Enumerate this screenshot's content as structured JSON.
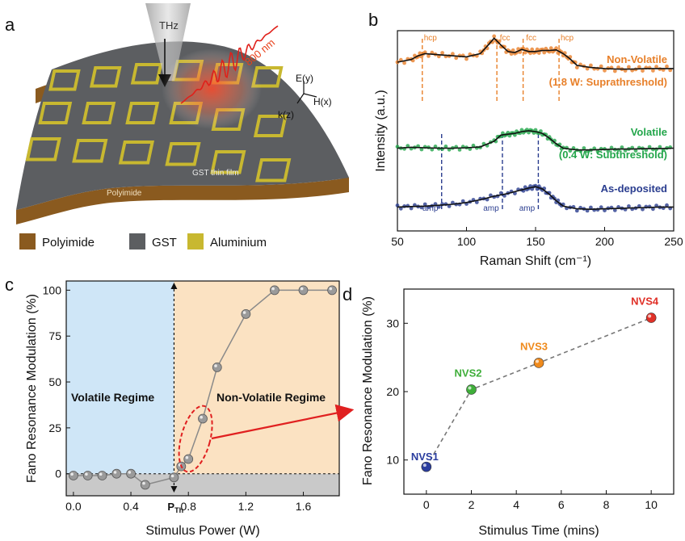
{
  "panel_a": {
    "label": "a",
    "thz_label": "THz",
    "laser_label": "800 nm",
    "axis_e": "E(y)",
    "axis_h": "H(x)",
    "axis_k": "k(z)",
    "film_label": "GST thin film",
    "substrate_label": "Polyimide",
    "legend": [
      {
        "label": "Polyimide",
        "color": "#8a5a1f"
      },
      {
        "label": "GST",
        "color": "#5c5e61"
      },
      {
        "label": "Aluminium",
        "color": "#c8b830"
      }
    ]
  },
  "chart_data": [
    {
      "id": "b",
      "type": "line",
      "panel_label": "b",
      "xlabel": "Raman Shift (cm⁻¹)",
      "ylabel": "Intensity (a.u.)",
      "xlim": [
        50,
        250
      ],
      "xticks": [
        50,
        100,
        150,
        200,
        250
      ],
      "series": [
        {
          "name": "Non-Volatile",
          "note": "(1.8 W: Suprathreshold)",
          "color": "#e8802a",
          "x": [
            50,
            60,
            65,
            70,
            80,
            90,
            100,
            110,
            115,
            120,
            125,
            130,
            135,
            140,
            145,
            150,
            155,
            160,
            165,
            170,
            175,
            180,
            190,
            200,
            210,
            220,
            230,
            240,
            250
          ],
          "y": [
            0.5,
            0.55,
            0.62,
            0.66,
            0.64,
            0.62,
            0.6,
            0.66,
            0.8,
            0.95,
            0.82,
            0.7,
            0.68,
            0.74,
            0.7,
            0.7,
            0.72,
            0.72,
            0.73,
            0.66,
            0.56,
            0.44,
            0.4,
            0.38,
            0.37,
            0.37,
            0.38,
            0.38,
            0.38
          ]
        },
        {
          "name": "Volatile",
          "note": "(0.4 W: Subthreshold)",
          "color": "#23a64b",
          "x": [
            50,
            60,
            70,
            80,
            90,
            100,
            110,
            120,
            125,
            130,
            135,
            140,
            145,
            150,
            155,
            160,
            165,
            170,
            180,
            190,
            200,
            210,
            220,
            230,
            240,
            250
          ],
          "y": [
            0.12,
            0.14,
            0.13,
            0.12,
            0.12,
            0.13,
            0.15,
            0.28,
            0.42,
            0.44,
            0.46,
            0.5,
            0.52,
            0.5,
            0.46,
            0.35,
            0.22,
            0.12,
            0.08,
            0.08,
            0.09,
            0.1,
            0.1,
            0.11,
            0.11,
            0.12
          ]
        },
        {
          "name": "As-deposited",
          "note": "",
          "color": "#2a3d8f",
          "x": [
            50,
            60,
            70,
            80,
            90,
            100,
            110,
            120,
            130,
            140,
            145,
            150,
            155,
            160,
            165,
            170,
            180,
            190,
            200,
            210,
            220,
            230,
            240,
            250
          ],
          "y": [
            0.1,
            0.11,
            0.12,
            0.14,
            0.16,
            0.2,
            0.26,
            0.34,
            0.4,
            0.48,
            0.52,
            0.55,
            0.5,
            0.38,
            0.24,
            0.12,
            0.06,
            0.05,
            0.06,
            0.07,
            0.08,
            0.09,
            0.1,
            0.1
          ]
        }
      ],
      "annotations": [
        {
          "text": "hcp",
          "x": 68,
          "color": "#e8802a"
        },
        {
          "text": "fcc",
          "x": 122,
          "color": "#e8802a"
        },
        {
          "text": "fcc",
          "x": 141,
          "color": "#e8802a"
        },
        {
          "text": "hcp",
          "x": 167,
          "color": "#e8802a"
        },
        {
          "text": "amp",
          "x": 82,
          "color": "#2a3d8f"
        },
        {
          "text": "amp",
          "x": 126,
          "color": "#2a3d8f"
        },
        {
          "text": "amp",
          "x": 152,
          "color": "#2a3d8f"
        }
      ]
    },
    {
      "id": "c",
      "type": "scatter",
      "panel_label": "c",
      "xlabel": "Stimulus Power (W)",
      "ylabel": "Fano Resonance Modulation (%)",
      "xlim": [
        -0.05,
        1.85
      ],
      "ylim": [
        -12,
        105
      ],
      "xticks": [
        0.0,
        0.4,
        0.8,
        1.2,
        1.6
      ],
      "yticks": [
        0,
        25,
        50,
        75,
        100
      ],
      "threshold_x": 0.7,
      "threshold_label": "P",
      "threshold_sub": "Th",
      "regions": [
        {
          "label": "Volatile Regime",
          "color": "#cfe6f7"
        },
        {
          "label": "Non-Volatile Regime",
          "color": "#fbe2c2"
        }
      ],
      "x": [
        0.0,
        0.1,
        0.2,
        0.3,
        0.4,
        0.5,
        0.7,
        0.75,
        0.8,
        0.9,
        1.0,
        1.2,
        1.4,
        1.6,
        1.8
      ],
      "y": [
        -1,
        -1,
        -1,
        0,
        0,
        -6,
        -2,
        4,
        8,
        30,
        58,
        87,
        100,
        100,
        100
      ],
      "highlight_x": [
        0.8,
        0.9
      ]
    },
    {
      "id": "d",
      "type": "scatter",
      "panel_label": "d",
      "xlabel": "Stimulus Time (mins)",
      "ylabel": "Fano Resonance Modulation (%)",
      "xlim": [
        -1,
        11
      ],
      "ylim": [
        5,
        35
      ],
      "xticks": [
        0,
        2,
        4,
        6,
        8,
        10
      ],
      "yticks": [
        10,
        20,
        30
      ],
      "points": [
        {
          "label": "NVS1",
          "x": 0,
          "y": 9,
          "color": "#2a3d9f"
        },
        {
          "label": "NVS2",
          "x": 2,
          "y": 20.3,
          "color": "#3fae3a"
        },
        {
          "label": "NVS3",
          "x": 5,
          "y": 24.2,
          "color": "#ef8a1c"
        },
        {
          "label": "NVS4",
          "x": 10,
          "y": 30.8,
          "color": "#e03027"
        }
      ]
    }
  ]
}
